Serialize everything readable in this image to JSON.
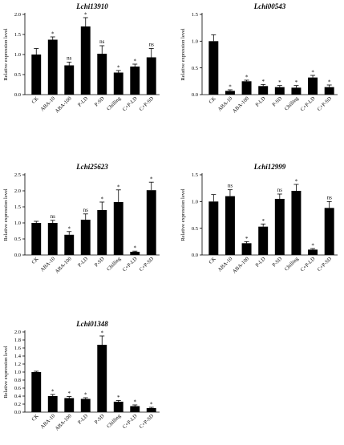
{
  "figure": {
    "ylabel": "Relative expression level"
  },
  "chart_data": [
    {
      "type": "bar",
      "title": "Lchi13910",
      "ylabel": "Relative expression level",
      "ylim": [
        0,
        2.0
      ],
      "yticks": [
        "0.0",
        "0.5",
        "1.0",
        "1.5",
        "2.0"
      ],
      "categories": [
        "CK",
        "ABA-10",
        "ABA-100",
        "P-LD",
        "P-SD",
        "Chilling",
        "C+P-LD",
        "C+P-SD"
      ],
      "values": [
        1.0,
        1.37,
        0.73,
        1.7,
        1.02,
        0.55,
        0.7,
        0.93
      ],
      "errors": [
        0.15,
        0.07,
        0.08,
        0.22,
        0.2,
        0.05,
        0.06,
        0.22
      ],
      "significance": [
        "",
        "*",
        "ns",
        "*",
        "ns",
        "*",
        "*",
        "ns"
      ]
    },
    {
      "type": "bar",
      "title": "Lchi00543",
      "ylabel": "Relative expression level",
      "ylim": [
        0,
        1.5
      ],
      "yticks": [
        "0.0",
        "0.5",
        "1.0",
        "1.5"
      ],
      "categories": [
        "CK",
        "ABA-10",
        "ABA-100",
        "P-LD",
        "P-SD",
        "Chilling",
        "C+P-LD",
        "C+P-SD"
      ],
      "values": [
        1.0,
        0.07,
        0.25,
        0.16,
        0.14,
        0.13,
        0.32,
        0.14
      ],
      "errors": [
        0.12,
        0.02,
        0.02,
        0.03,
        0.03,
        0.04,
        0.04,
        0.04
      ],
      "significance": [
        "",
        "*",
        "*",
        "*",
        "*",
        "*",
        "*",
        "*"
      ]
    },
    {
      "type": "bar",
      "title": "Lchi25623",
      "ylabel": "Relative expression level",
      "ylim": [
        0,
        2.5
      ],
      "yticks": [
        "0.0",
        "0.5",
        "1.0",
        "1.5",
        "2.0",
        "2.5"
      ],
      "categories": [
        "CK",
        "ABA-10",
        "ABA-100",
        "P-LD",
        "P-SD",
        "Chilling",
        "C+P-LD",
        "C+P-SD"
      ],
      "values": [
        1.0,
        1.0,
        0.63,
        1.1,
        1.4,
        1.65,
        0.1,
        2.02
      ],
      "errors": [
        0.05,
        0.08,
        0.1,
        0.18,
        0.25,
        0.38,
        0.02,
        0.25
      ],
      "significance": [
        "",
        "ns",
        "*",
        "ns",
        "*",
        "*",
        "*",
        "*"
      ]
    },
    {
      "type": "bar",
      "title": "Lchi12999",
      "ylabel": "Relative expression level",
      "ylim": [
        0,
        1.5
      ],
      "yticks": [
        "0.0",
        "0.5",
        "1.0",
        "1.5"
      ],
      "categories": [
        "CK",
        "ABA-10",
        "ABA-100",
        "P-LD",
        "P-SD",
        "Chilling",
        "C+P-LD",
        "C+P-SD"
      ],
      "values": [
        1.0,
        1.1,
        0.22,
        0.53,
        1.05,
        1.2,
        0.1,
        0.88
      ],
      "errors": [
        0.13,
        0.12,
        0.03,
        0.05,
        0.09,
        0.12,
        0.02,
        0.12
      ],
      "significance": [
        "",
        "ns",
        "*",
        "*",
        "ns",
        "*",
        "*",
        "ns"
      ]
    },
    {
      "type": "bar",
      "title": "Lchi01348",
      "ylabel": "Relative expression level",
      "ylim": [
        0,
        2.0
      ],
      "yticks": [
        "0.0",
        "0.2",
        "0.4",
        "0.6",
        "0.8",
        "1.0",
        "1.2",
        "1.4",
        "1.6",
        "1.8",
        "2.0"
      ],
      "categories": [
        "CK",
        "ABA-10",
        "ABA-100",
        "P-LD",
        "P-SD",
        "Chilling",
        "C+P-LD",
        "C+P-SD"
      ],
      "values": [
        1.0,
        0.4,
        0.35,
        0.33,
        1.68,
        0.26,
        0.15,
        0.1
      ],
      "errors": [
        0.02,
        0.04,
        0.04,
        0.03,
        0.22,
        0.03,
        0.03,
        0.02
      ],
      "significance": [
        "",
        "*",
        "*",
        "*",
        "*",
        "*",
        "*",
        "*"
      ]
    }
  ]
}
